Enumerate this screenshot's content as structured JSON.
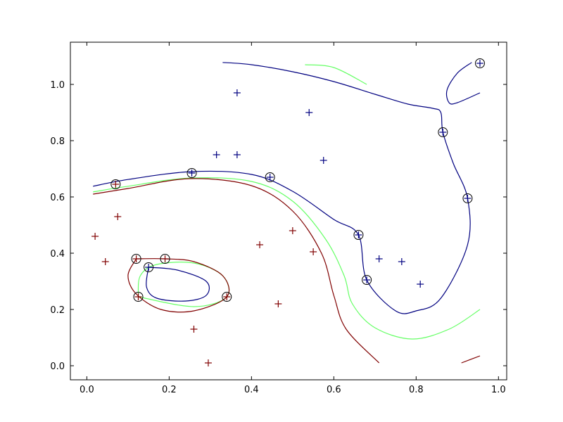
{
  "chart_data": {
    "type": "scatter",
    "title": "",
    "xlabel": "",
    "ylabel": "",
    "xlim": [
      -0.04,
      1.02
    ],
    "ylim": [
      -0.05,
      1.15
    ],
    "grid": false,
    "x_ticks": [
      0.0,
      0.2,
      0.4,
      0.6,
      0.8,
      1.0
    ],
    "x_tick_labels": [
      "0.0",
      "0.2",
      "0.4",
      "0.6",
      "0.8",
      "1.0"
    ],
    "y_ticks": [
      0.0,
      0.2,
      0.4,
      0.6,
      0.8,
      1.0
    ],
    "y_tick_labels": [
      "0.0",
      "0.2",
      "0.4",
      "0.6",
      "0.8",
      "1.0"
    ],
    "colors": {
      "class_a": "#800000",
      "class_b": "#000080",
      "mid_contour": "#66ff66",
      "support_ring": "#000000"
    },
    "series": [
      {
        "marker": "+",
        "color": "#800000",
        "points": [
          [
            0.02,
            0.46
          ],
          [
            0.045,
            0.37
          ],
          [
            0.075,
            0.53
          ],
          [
            0.12,
            0.38
          ],
          [
            0.19,
            0.38
          ],
          [
            0.125,
            0.245
          ],
          [
            0.26,
            0.13
          ],
          [
            0.295,
            0.01
          ],
          [
            0.42,
            0.43
          ],
          [
            0.465,
            0.22
          ],
          [
            0.5,
            0.48
          ],
          [
            0.55,
            0.405
          ],
          [
            0.34,
            0.245
          ],
          [
            0.07,
            0.645
          ]
        ]
      },
      {
        "marker": "+",
        "color": "#000080",
        "points": [
          [
            0.365,
            0.97
          ],
          [
            0.54,
            0.9
          ],
          [
            0.315,
            0.75
          ],
          [
            0.365,
            0.75
          ],
          [
            0.575,
            0.73
          ],
          [
            0.71,
            0.38
          ],
          [
            0.765,
            0.37
          ],
          [
            0.81,
            0.29
          ],
          [
            0.15,
            0.35
          ],
          [
            0.255,
            0.685
          ],
          [
            0.445,
            0.67
          ],
          [
            0.66,
            0.465
          ],
          [
            0.68,
            0.305
          ],
          [
            0.865,
            0.83
          ],
          [
            0.925,
            0.595
          ],
          [
            0.955,
            1.075
          ]
        ]
      }
    ],
    "support_vectors": [
      [
        0.07,
        0.645
      ],
      [
        0.255,
        0.685
      ],
      [
        0.445,
        0.67
      ],
      [
        0.66,
        0.465
      ],
      [
        0.68,
        0.305
      ],
      [
        0.865,
        0.83
      ],
      [
        0.925,
        0.595
      ],
      [
        0.955,
        1.075
      ],
      [
        0.12,
        0.38
      ],
      [
        0.19,
        0.38
      ],
      [
        0.15,
        0.35
      ],
      [
        0.125,
        0.245
      ],
      [
        0.34,
        0.245
      ]
    ],
    "contours": [
      {
        "level": "boundary",
        "color": "#66ff66",
        "paths": [
          [
            [
              0.015,
              0.618
            ],
            [
              0.1,
              0.638
            ],
            [
              0.25,
              0.667
            ],
            [
              0.4,
              0.655
            ],
            [
              0.5,
              0.585
            ],
            [
              0.58,
              0.45
            ],
            [
              0.625,
              0.32
            ],
            [
              0.645,
              0.22
            ],
            [
              0.7,
              0.135
            ],
            [
              0.79,
              0.095
            ],
            [
              0.88,
              0.13
            ],
            [
              0.955,
              0.2
            ]
          ],
          [
            [
              0.53,
              1.07
            ],
            [
              0.6,
              1.06
            ],
            [
              0.68,
              1.0
            ]
          ],
          [
            [
              0.125,
              0.245
            ],
            [
              0.26,
              0.21
            ],
            [
              0.34,
              0.245
            ],
            [
              0.33,
              0.32
            ],
            [
              0.26,
              0.365
            ],
            [
              0.17,
              0.36
            ],
            [
              0.13,
              0.32
            ],
            [
              0.125,
              0.245
            ]
          ]
        ]
      },
      {
        "level": "class_b",
        "color": "#000080",
        "paths": [
          [
            [
              0.015,
              0.638
            ],
            [
              0.1,
              0.662
            ],
            [
              0.255,
              0.69
            ],
            [
              0.4,
              0.68
            ],
            [
              0.5,
              0.62
            ],
            [
              0.6,
              0.52
            ],
            [
              0.66,
              0.465
            ],
            [
              0.68,
              0.305
            ],
            [
              0.75,
              0.195
            ],
            [
              0.8,
              0.195
            ],
            [
              0.86,
              0.24
            ],
            [
              0.925,
              0.43
            ],
            [
              0.925,
              0.595
            ],
            [
              0.89,
              0.72
            ],
            [
              0.865,
              0.83
            ],
            [
              0.86,
              0.9
            ],
            [
              0.84,
              0.915
            ],
            [
              0.78,
              0.93
            ],
            [
              0.7,
              0.965
            ],
            [
              0.6,
              1.01
            ],
            [
              0.5,
              1.045
            ],
            [
              0.4,
              1.07
            ],
            [
              0.33,
              1.078
            ]
          ],
          [
            [
              0.955,
              0.97
            ],
            [
              0.9,
              0.935
            ],
            [
              0.88,
              0.935
            ],
            [
              0.875,
              0.98
            ],
            [
              0.9,
              1.04
            ],
            [
              0.935,
              1.078
            ]
          ],
          [
            [
              0.15,
              0.35
            ],
            [
              0.22,
              0.34
            ],
            [
              0.29,
              0.3
            ],
            [
              0.29,
              0.25
            ],
            [
              0.24,
              0.23
            ],
            [
              0.17,
              0.24
            ],
            [
              0.145,
              0.28
            ],
            [
              0.15,
              0.35
            ]
          ]
        ]
      },
      {
        "level": "class_a",
        "color": "#800000",
        "paths": [
          [
            [
              0.015,
              0.61
            ],
            [
              0.1,
              0.63
            ],
            [
              0.25,
              0.665
            ],
            [
              0.4,
              0.64
            ],
            [
              0.5,
              0.55
            ],
            [
              0.57,
              0.4
            ],
            [
              0.6,
              0.25
            ],
            [
              0.63,
              0.13
            ],
            [
              0.71,
              0.01
            ]
          ],
          [
            [
              0.91,
              0.01
            ],
            [
              0.955,
              0.035
            ]
          ],
          [
            [
              0.12,
              0.38
            ],
            [
              0.19,
              0.38
            ],
            [
              0.26,
              0.37
            ],
            [
              0.33,
              0.32
            ],
            [
              0.34,
              0.245
            ],
            [
              0.26,
              0.195
            ],
            [
              0.18,
              0.2
            ],
            [
              0.12,
              0.255
            ],
            [
              0.1,
              0.32
            ],
            [
              0.12,
              0.38
            ]
          ]
        ]
      }
    ]
  }
}
